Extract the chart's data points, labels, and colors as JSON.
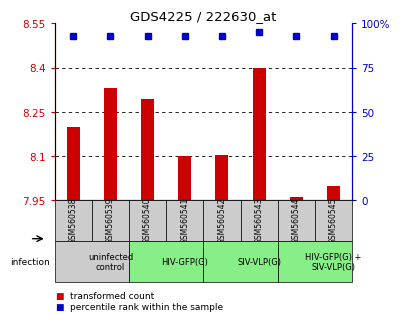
{
  "title": "GDS4225 / 222630_at",
  "samples": [
    "GSM560538",
    "GSM560539",
    "GSM560540",
    "GSM560541",
    "GSM560542",
    "GSM560543",
    "GSM560544",
    "GSM560545"
  ],
  "bar_values": [
    8.2,
    8.33,
    8.295,
    8.1,
    8.105,
    8.4,
    7.962,
    8.0
  ],
  "percentile_values": [
    93,
    93,
    93,
    93,
    93,
    95,
    93,
    93
  ],
  "ylim_left": [
    7.95,
    8.55
  ],
  "ylim_right": [
    0,
    100
  ],
  "yticks_left": [
    7.95,
    8.1,
    8.25,
    8.4,
    8.55
  ],
  "yticks_right": [
    0,
    25,
    50,
    75,
    100
  ],
  "bar_color": "#cc0000",
  "dot_color": "#0000cc",
  "groups": [
    {
      "label": "uninfected\ncontrol",
      "start": 0,
      "end": 2,
      "color": "#cccccc"
    },
    {
      "label": "HIV-GFP(G)",
      "start": 2,
      "end": 4,
      "color": "#88ee88"
    },
    {
      "label": "SIV-VLP(G)",
      "start": 4,
      "end": 6,
      "color": "#88ee88"
    },
    {
      "label": "HIV-GFP(G) +\nSIV-VLP(G)",
      "start": 6,
      "end": 8,
      "color": "#88ee88"
    }
  ],
  "infection_label": "infection",
  "legend_items": [
    {
      "color": "#cc0000",
      "label": "transformed count"
    },
    {
      "color": "#0000cc",
      "label": "percentile rank within the sample"
    }
  ],
  "left_axis_color": "#cc0000",
  "right_axis_color": "#0000cc",
  "sample_box_color": "#cccccc"
}
